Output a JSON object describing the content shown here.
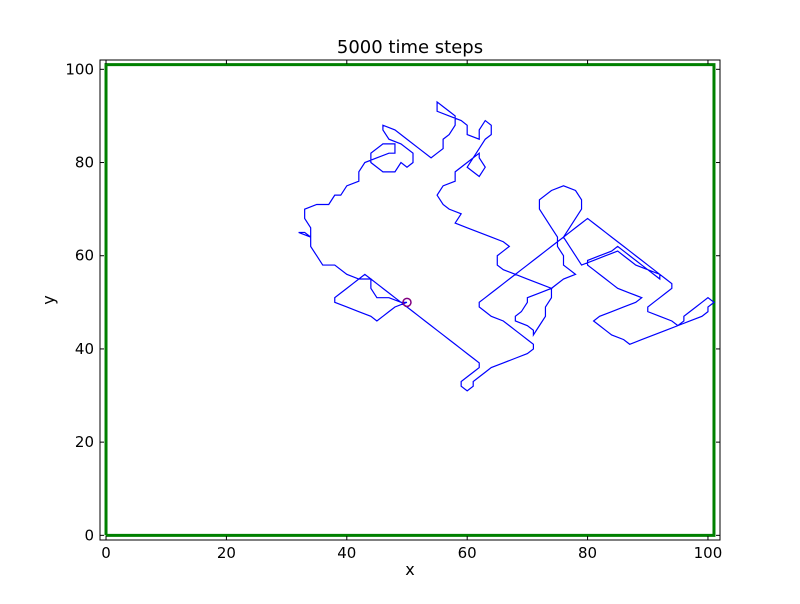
{
  "chart_data": {
    "type": "line",
    "title": "5000 time steps",
    "xlabel": "x",
    "ylabel": "y",
    "xlim": [
      -1,
      102
    ],
    "ylim": [
      -1,
      102
    ],
    "x_ticks": [
      0,
      20,
      40,
      60,
      80,
      100
    ],
    "y_ticks": [
      0,
      20,
      40,
      60,
      80,
      100
    ],
    "x_tick_labels": [
      "0",
      "20",
      "40",
      "60",
      "80",
      "100"
    ],
    "y_tick_labels": [
      "0",
      "20",
      "40",
      "60",
      "80",
      "100"
    ],
    "grid": false,
    "series": [
      {
        "role": "boundary",
        "color": "#008000",
        "x": [
          0,
          101,
          101,
          0,
          0
        ],
        "y": [
          0,
          0,
          101,
          101,
          0
        ]
      },
      {
        "role": "random walk",
        "color": "#0000ff",
        "steps": 5000,
        "x": [
          50,
          49,
          47,
          45,
          44,
          44,
          42,
          40,
          38,
          36,
          35,
          34,
          34,
          33,
          32,
          34,
          34,
          33,
          33,
          35,
          37,
          38,
          39,
          40,
          42,
          42,
          43,
          45,
          47,
          48,
          48,
          46,
          44,
          44,
          46,
          48,
          49,
          50,
          51,
          51,
          49,
          47,
          46,
          46,
          48,
          50,
          52,
          54,
          55,
          56,
          56,
          57,
          58,
          58,
          57,
          56,
          55,
          55,
          57,
          59,
          60,
          60,
          62,
          62,
          63,
          64,
          64,
          63,
          62,
          61,
          60,
          61,
          62,
          63,
          62,
          62,
          60,
          58,
          58,
          56,
          55,
          56,
          57,
          59,
          58,
          60,
          62,
          64,
          66,
          67,
          66,
          65,
          65,
          66,
          68,
          70,
          72,
          74,
          72,
          70,
          70,
          69,
          68,
          68,
          70,
          71,
          71,
          72,
          73,
          73,
          74,
          74,
          76,
          78,
          77,
          76,
          76,
          75,
          75,
          74,
          73,
          72,
          72,
          74,
          76,
          78,
          79,
          79,
          78,
          77,
          76,
          77,
          78,
          79,
          81,
          83,
          85,
          86,
          87,
          88,
          90,
          92,
          93,
          94,
          94,
          93,
          92,
          91,
          90,
          90,
          92,
          94,
          95,
          97,
          99,
          100,
          100,
          101,
          100,
          99,
          98,
          97,
          96,
          96,
          95,
          93,
          91,
          89,
          87,
          86,
          84,
          83,
          82,
          81,
          82,
          84,
          86,
          88,
          89,
          87,
          85,
          84,
          83,
          82,
          81,
          80,
          80,
          82,
          84,
          85,
          86,
          87,
          88,
          89,
          90,
          91,
          92,
          92,
          91,
          90,
          89,
          88,
          87,
          86,
          85,
          84,
          83,
          82,
          81,
          80,
          79,
          78,
          77,
          76,
          75,
          74,
          73,
          72,
          71,
          70,
          69,
          68,
          67,
          66,
          65,
          64,
          63,
          62,
          62,
          63,
          64,
          66,
          67,
          68,
          69,
          70,
          71,
          71,
          70,
          68,
          66,
          64,
          63,
          62,
          61,
          61,
          60,
          59,
          59,
          60,
          61,
          62,
          62,
          61,
          60,
          59,
          58,
          57,
          56,
          55,
          54,
          53,
          52,
          51,
          50,
          49,
          48,
          47,
          46,
          45,
          44,
          43,
          42,
          41,
          40,
          39,
          38,
          38,
          40,
          42,
          44,
          45,
          46,
          47,
          48,
          50
        ],
        "y": [
          50,
          50,
          51,
          51,
          53,
          55,
          55,
          56,
          58,
          58,
          60,
          62,
          64,
          65,
          65,
          64,
          66,
          68,
          70,
          71,
          71,
          73,
          73,
          75,
          76,
          78,
          80,
          81,
          82,
          82,
          84,
          84,
          82,
          80,
          78,
          78,
          80,
          79,
          80,
          82,
          84,
          85,
          87,
          88,
          87,
          85,
          83,
          81,
          82,
          83,
          85,
          86,
          88,
          90,
          91,
          92,
          93,
          91,
          90,
          89,
          88,
          86,
          85,
          87,
          89,
          88,
          86,
          85,
          83,
          81,
          79,
          78,
          77,
          79,
          81,
          82,
          80,
          78,
          76,
          75,
          73,
          71,
          70,
          69,
          67,
          66,
          65,
          64,
          63,
          62,
          61,
          60,
          58,
          57,
          56,
          55,
          54,
          53,
          52,
          51,
          50,
          48,
          47,
          46,
          45,
          44,
          43,
          45,
          47,
          49,
          51,
          53,
          55,
          56,
          57,
          58,
          60,
          62,
          64,
          66,
          68,
          70,
          72,
          74,
          75,
          74,
          72,
          70,
          68,
          66,
          64,
          62,
          60,
          58,
          59,
          60,
          61,
          60,
          59,
          58,
          57,
          56,
          55,
          54,
          53,
          52,
          51,
          50,
          49,
          48,
          47,
          46,
          45,
          46,
          47,
          48,
          49,
          50,
          51,
          50,
          49,
          48,
          47,
          46,
          45,
          44,
          43,
          42,
          41,
          42,
          43,
          44,
          45,
          46,
          47,
          48,
          49,
          50,
          51,
          52,
          53,
          54,
          55,
          56,
          57,
          58,
          59,
          60,
          61,
          62,
          61,
          60,
          59,
          58,
          57,
          56,
          55,
          56,
          57,
          58,
          59,
          60,
          61,
          62,
          63,
          64,
          65,
          66,
          67,
          68,
          67,
          66,
          65,
          64,
          63,
          62,
          61,
          60,
          59,
          58,
          57,
          56,
          55,
          54,
          53,
          52,
          51,
          50,
          49,
          48,
          47,
          46,
          45,
          44,
          43,
          42,
          41,
          40,
          39,
          38,
          37,
          36,
          35,
          34,
          33,
          32,
          31,
          32,
          33,
          34,
          35,
          36,
          37,
          38,
          39,
          40,
          41,
          42,
          43,
          44,
          45,
          46,
          47,
          48,
          49,
          50,
          51,
          52,
          53,
          54,
          55,
          56,
          55,
          54,
          53,
          52,
          51,
          50,
          49,
          48,
          47,
          46,
          47,
          48,
          49,
          50
        ]
      }
    ],
    "markers": [
      {
        "role": "start",
        "x": 50,
        "y": 50,
        "color": "#800080"
      }
    ]
  }
}
